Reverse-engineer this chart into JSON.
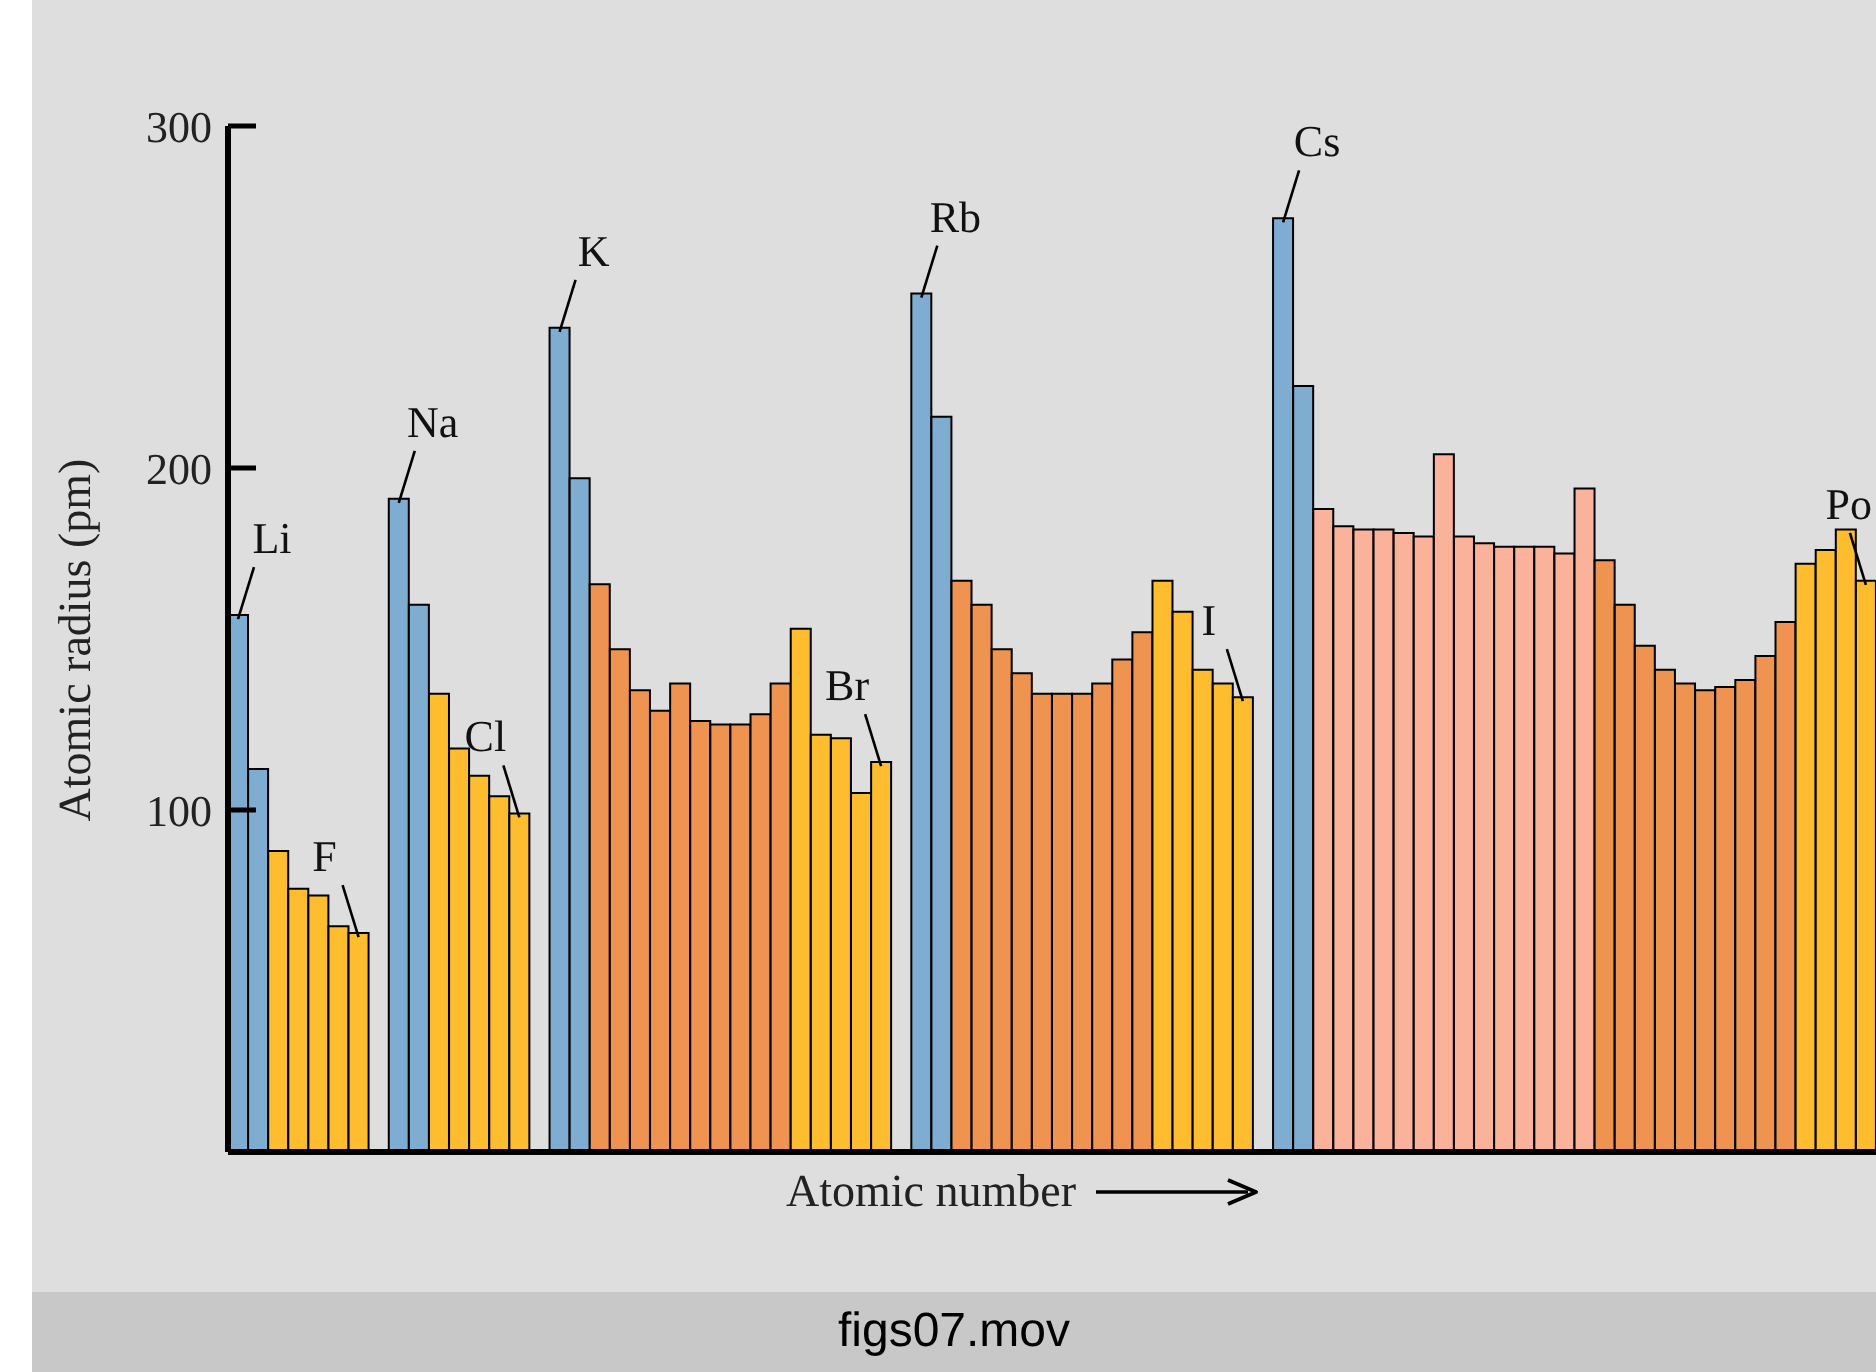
{
  "chart_data": {
    "type": "bar",
    "xlabel": "Atomic number",
    "ylabel": "Atomic radius (pm)",
    "annotations": [
      "figs07.mov"
    ],
    "categories": [
      null,
      null,
      null,
      null,
      null,
      null,
      null,
      null,
      null,
      null,
      null,
      null,
      null,
      null,
      null,
      null,
      null,
      null,
      null,
      null,
      null,
      null,
      null,
      null,
      null,
      null,
      null,
      null,
      null,
      null,
      null,
      null,
      null,
      null,
      null,
      null,
      null,
      null,
      null,
      null,
      null,
      null,
      null,
      null,
      null,
      null,
      null,
      null,
      null,
      null,
      null,
      null,
      null,
      null,
      null,
      null,
      null,
      null,
      null,
      null,
      null,
      null,
      null,
      null,
      null,
      null,
      null,
      null,
      null,
      null,
      null,
      null,
      null,
      null,
      null,
      null,
      null,
      null,
      null,
      null,
      null,
      null
    ],
    "values": [
      157,
      112,
      88,
      77,
      75,
      66,
      64,
      null,
      191,
      160,
      134,
      118,
      110,
      104,
      99,
      null,
      241,
      197,
      166,
      147,
      135,
      129,
      137,
      126,
      125,
      125,
      128,
      137,
      153,
      122,
      121,
      105,
      114,
      null,
      251,
      215,
      167,
      160,
      147,
      140,
      134,
      134,
      134,
      137,
      144,
      152,
      167,
      158,
      141,
      137,
      133,
      null,
      273,
      224,
      188,
      183,
      182,
      182,
      181,
      180,
      204,
      180,
      178,
      177,
      177,
      177,
      175,
      194,
      173,
      160,
      148,
      141,
      137,
      135,
      136,
      138,
      145,
      155,
      172,
      176,
      182,
      167
    ],
    "colors": [
      "#7eadd1",
      "#7eadd1",
      "#fdbd2f",
      "#fdbd2f",
      "#fdbd2f",
      "#fdbd2f",
      "#fdbd2f",
      null,
      "#7eadd1",
      "#7eadd1",
      "#fdbd2f",
      "#fdbd2f",
      "#fdbd2f",
      "#fdbd2f",
      "#fdbd2f",
      null,
      "#7eadd1",
      "#7eadd1",
      "#ef9450",
      "#ef9450",
      "#ef9450",
      "#ef9450",
      "#ef9450",
      "#ef9450",
      "#ef9450",
      "#ef9450",
      "#ef9450",
      "#ef9450",
      "#fdbd2f",
      "#fdbd2f",
      "#fdbd2f",
      "#fdbd2f",
      "#fdbd2f",
      null,
      "#7eadd1",
      "#7eadd1",
      "#ef9450",
      "#ef9450",
      "#ef9450",
      "#ef9450",
      "#ef9450",
      "#ef9450",
      "#ef9450",
      "#ef9450",
      "#ef9450",
      "#ef9450",
      "#fdbd2f",
      "#fdbd2f",
      "#fdbd2f",
      "#fdbd2f",
      "#fdbd2f",
      null,
      "#7eadd1",
      "#7eadd1",
      "#fbb29b",
      "#fbb29b",
      "#fbb29b",
      "#fbb29b",
      "#fbb29b",
      "#fbb29b",
      "#fbb29b",
      "#fbb29b",
      "#fbb29b",
      "#fbb29b",
      "#fbb29b",
      "#fbb29b",
      "#fbb29b",
      "#fbb29b",
      "#ef9450",
      "#ef9450",
      "#ef9450",
      "#ef9450",
      "#ef9450",
      "#ef9450",
      "#ef9450",
      "#ef9450",
      "#ef9450",
      "#ef9450",
      "#fdbd2f",
      "#fdbd2f",
      "#fdbd2f",
      "#fdbd2f"
    ],
    "value_labels": [
      "Li",
      null,
      null,
      null,
      null,
      null,
      "F",
      null,
      "Na",
      null,
      null,
      null,
      null,
      null,
      "Cl",
      null,
      "K",
      null,
      null,
      null,
      null,
      null,
      null,
      null,
      null,
      null,
      null,
      null,
      null,
      null,
      null,
      null,
      "Br",
      null,
      "Rb",
      null,
      null,
      null,
      null,
      null,
      null,
      null,
      null,
      null,
      null,
      null,
      null,
      null,
      null,
      null,
      "I",
      null,
      "Cs",
      null,
      null,
      null,
      null,
      null,
      null,
      null,
      null,
      null,
      null,
      null,
      null,
      null,
      null,
      null,
      null,
      null,
      null,
      null,
      null,
      null,
      null,
      null,
      null,
      null,
      null,
      null,
      null,
      "Po"
    ],
    "ylim": [
      0,
      300
    ],
    "yticks": [
      100,
      200,
      300
    ]
  }
}
